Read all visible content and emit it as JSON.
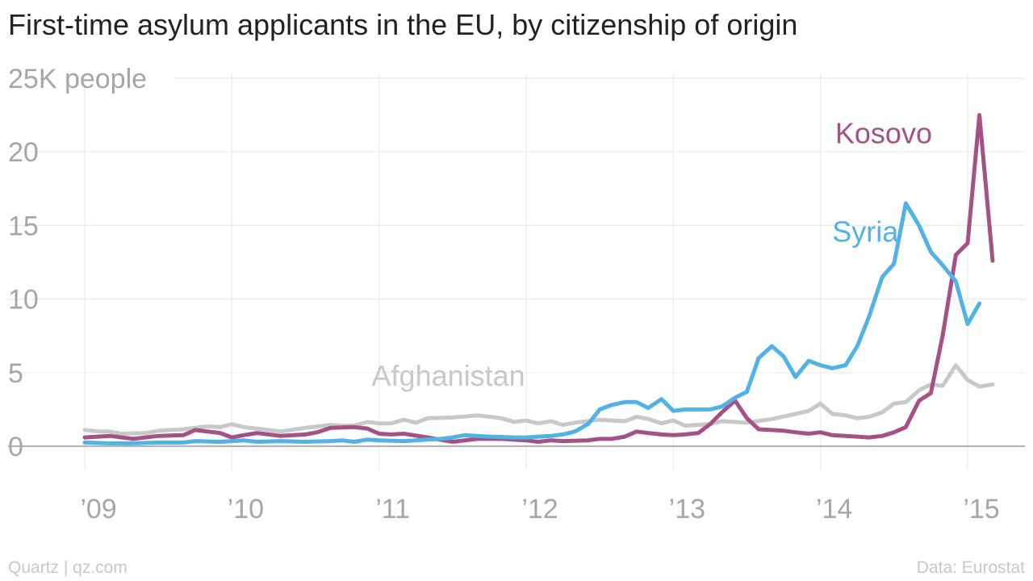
{
  "title": "First-time asylum applicants in the EU, by citizenship of origin",
  "footer": {
    "source_left": "Quartz | qz.com",
    "source_right": "Data: Eurostat"
  },
  "colors": {
    "Kosovo": "#a65185",
    "Syria": "#51b2e5",
    "Afghanistan": "#c8c8c8",
    "grid": "#ebebeb",
    "zero_line": "#999999",
    "tick_text": "#a6a6a6"
  },
  "chart_data": {
    "type": "line",
    "title": "First-time asylum applicants in the EU, by citizenship of origin",
    "ylabel": "25K people",
    "ylim": [
      0,
      25
    ],
    "xlim": [
      2009.0,
      2015.17
    ],
    "yticks": [
      0,
      5,
      10,
      15,
      20
    ],
    "ytick_labels": [
      "0",
      "5",
      "10",
      "15",
      "20"
    ],
    "top_tick": {
      "value": 25,
      "label": "25K people"
    },
    "xticks": [
      2009,
      2010,
      2011,
      2012,
      2013,
      2014,
      2015
    ],
    "xtick_labels": [
      "’09",
      "’10",
      "’11",
      "’12",
      "’13",
      "’14",
      "’15"
    ],
    "grid": true,
    "series": [
      {
        "name": "Afghanistan",
        "label_at": [
          2010.95,
          4.1
        ],
        "points": [
          [
            2009.0,
            1.1
          ],
          [
            2009.1,
            1.0
          ],
          [
            2009.17,
            1.0
          ],
          [
            2009.25,
            0.85
          ],
          [
            2009.42,
            0.9
          ],
          [
            2009.5,
            1.05
          ],
          [
            2009.67,
            1.15
          ],
          [
            2009.83,
            1.35
          ],
          [
            2009.92,
            1.3
          ],
          [
            2010.0,
            1.5
          ],
          [
            2010.08,
            1.3
          ],
          [
            2010.17,
            1.2
          ],
          [
            2010.33,
            1.0
          ],
          [
            2010.5,
            1.25
          ],
          [
            2010.67,
            1.45
          ],
          [
            2010.75,
            1.4
          ],
          [
            2010.83,
            1.4
          ],
          [
            2010.92,
            1.65
          ],
          [
            2011.0,
            1.55
          ],
          [
            2011.08,
            1.55
          ],
          [
            2011.17,
            1.8
          ],
          [
            2011.25,
            1.6
          ],
          [
            2011.33,
            1.9
          ],
          [
            2011.5,
            1.95
          ],
          [
            2011.67,
            2.1
          ],
          [
            2011.83,
            1.9
          ],
          [
            2011.92,
            1.65
          ],
          [
            2012.0,
            1.75
          ],
          [
            2012.08,
            1.55
          ],
          [
            2012.17,
            1.7
          ],
          [
            2012.25,
            1.45
          ],
          [
            2012.33,
            1.6
          ],
          [
            2012.5,
            1.8
          ],
          [
            2012.67,
            1.7
          ],
          [
            2012.75,
            2.0
          ],
          [
            2012.83,
            1.85
          ],
          [
            2012.92,
            1.55
          ],
          [
            2013.0,
            1.75
          ],
          [
            2013.08,
            1.4
          ],
          [
            2013.25,
            1.5
          ],
          [
            2013.33,
            1.7
          ],
          [
            2013.5,
            1.6
          ],
          [
            2013.67,
            1.85
          ],
          [
            2013.83,
            2.2
          ],
          [
            2013.92,
            2.4
          ],
          [
            2014.0,
            2.9
          ],
          [
            2014.08,
            2.2
          ],
          [
            2014.17,
            2.1
          ],
          [
            2014.25,
            1.9
          ],
          [
            2014.33,
            2.0
          ],
          [
            2014.42,
            2.3
          ],
          [
            2014.5,
            2.9
          ],
          [
            2014.58,
            3.0
          ],
          [
            2014.67,
            3.8
          ],
          [
            2014.75,
            4.2
          ],
          [
            2014.83,
            4.1
          ],
          [
            2014.92,
            5.5
          ],
          [
            2015.0,
            4.5
          ],
          [
            2015.08,
            4.05
          ],
          [
            2015.17,
            4.2
          ]
        ]
      },
      {
        "name": "Kosovo",
        "label_at": [
          2014.1,
          20.6
        ],
        "points": [
          [
            2009.0,
            0.6
          ],
          [
            2009.17,
            0.7
          ],
          [
            2009.33,
            0.5
          ],
          [
            2009.5,
            0.7
          ],
          [
            2009.67,
            0.75
          ],
          [
            2009.75,
            1.1
          ],
          [
            2009.92,
            0.9
          ],
          [
            2010.0,
            0.6
          ],
          [
            2010.08,
            0.75
          ],
          [
            2010.17,
            0.9
          ],
          [
            2010.33,
            0.7
          ],
          [
            2010.5,
            0.8
          ],
          [
            2010.58,
            0.95
          ],
          [
            2010.67,
            1.25
          ],
          [
            2010.83,
            1.3
          ],
          [
            2010.92,
            1.2
          ],
          [
            2011.0,
            0.85
          ],
          [
            2011.08,
            0.8
          ],
          [
            2011.17,
            0.85
          ],
          [
            2011.33,
            0.6
          ],
          [
            2011.5,
            0.3
          ],
          [
            2011.67,
            0.5
          ],
          [
            2011.83,
            0.5
          ],
          [
            2012.0,
            0.4
          ],
          [
            2012.08,
            0.3
          ],
          [
            2012.17,
            0.4
          ],
          [
            2012.25,
            0.35
          ],
          [
            2012.42,
            0.4
          ],
          [
            2012.5,
            0.5
          ],
          [
            2012.58,
            0.5
          ],
          [
            2012.67,
            0.65
          ],
          [
            2012.75,
            1.0
          ],
          [
            2012.83,
            0.9
          ],
          [
            2012.92,
            0.8
          ],
          [
            2013.0,
            0.75
          ],
          [
            2013.08,
            0.8
          ],
          [
            2013.17,
            0.9
          ],
          [
            2013.25,
            1.5
          ],
          [
            2013.33,
            2.3
          ],
          [
            2013.42,
            3.1
          ],
          [
            2013.5,
            1.9
          ],
          [
            2013.58,
            1.15
          ],
          [
            2013.67,
            1.1
          ],
          [
            2013.75,
            1.05
          ],
          [
            2013.83,
            0.95
          ],
          [
            2013.92,
            0.85
          ],
          [
            2014.0,
            0.95
          ],
          [
            2014.08,
            0.75
          ],
          [
            2014.17,
            0.7
          ],
          [
            2014.25,
            0.65
          ],
          [
            2014.33,
            0.6
          ],
          [
            2014.42,
            0.7
          ],
          [
            2014.5,
            0.95
          ],
          [
            2014.58,
            1.3
          ],
          [
            2014.67,
            3.1
          ],
          [
            2014.75,
            3.6
          ],
          [
            2014.83,
            7.5
          ],
          [
            2014.92,
            13.0
          ],
          [
            2015.0,
            13.8
          ],
          [
            2015.08,
            22.5
          ],
          [
            2015.17,
            12.6
          ]
        ]
      },
      {
        "name": "Syria",
        "label_at": [
          2014.08,
          13.9
        ],
        "points": [
          [
            2009.0,
            0.25
          ],
          [
            2009.17,
            0.2
          ],
          [
            2009.33,
            0.2
          ],
          [
            2009.5,
            0.25
          ],
          [
            2009.67,
            0.25
          ],
          [
            2009.75,
            0.35
          ],
          [
            2009.92,
            0.3
          ],
          [
            2010.0,
            0.35
          ],
          [
            2010.08,
            0.4
          ],
          [
            2010.17,
            0.3
          ],
          [
            2010.33,
            0.35
          ],
          [
            2010.5,
            0.3
          ],
          [
            2010.67,
            0.35
          ],
          [
            2010.75,
            0.4
          ],
          [
            2010.83,
            0.3
          ],
          [
            2010.92,
            0.45
          ],
          [
            2011.0,
            0.4
          ],
          [
            2011.17,
            0.35
          ],
          [
            2011.25,
            0.4
          ],
          [
            2011.33,
            0.45
          ],
          [
            2011.42,
            0.5
          ],
          [
            2011.5,
            0.6
          ],
          [
            2011.58,
            0.75
          ],
          [
            2011.67,
            0.7
          ],
          [
            2011.75,
            0.65
          ],
          [
            2011.92,
            0.6
          ],
          [
            2012.0,
            0.6
          ],
          [
            2012.08,
            0.65
          ],
          [
            2012.17,
            0.7
          ],
          [
            2012.25,
            0.8
          ],
          [
            2012.33,
            1.0
          ],
          [
            2012.42,
            1.5
          ],
          [
            2012.5,
            2.5
          ],
          [
            2012.58,
            2.8
          ],
          [
            2012.67,
            3.0
          ],
          [
            2012.75,
            3.0
          ],
          [
            2012.83,
            2.6
          ],
          [
            2012.92,
            3.2
          ],
          [
            2013.0,
            2.4
          ],
          [
            2013.08,
            2.5
          ],
          [
            2013.25,
            2.5
          ],
          [
            2013.33,
            2.7
          ],
          [
            2013.42,
            3.3
          ],
          [
            2013.5,
            3.7
          ],
          [
            2013.58,
            6.0
          ],
          [
            2013.67,
            6.8
          ],
          [
            2013.75,
            6.1
          ],
          [
            2013.83,
            4.7
          ],
          [
            2013.92,
            5.8
          ],
          [
            2014.0,
            5.5
          ],
          [
            2014.08,
            5.3
          ],
          [
            2014.17,
            5.5
          ],
          [
            2014.25,
            6.8
          ],
          [
            2014.33,
            8.8
          ],
          [
            2014.42,
            11.5
          ],
          [
            2014.5,
            12.4
          ],
          [
            2014.58,
            16.5
          ],
          [
            2014.67,
            15.0
          ],
          [
            2014.75,
            13.2
          ],
          [
            2014.83,
            12.3
          ],
          [
            2014.92,
            11.2
          ],
          [
            2015.0,
            8.3
          ],
          [
            2015.08,
            9.7
          ]
        ]
      }
    ]
  }
}
